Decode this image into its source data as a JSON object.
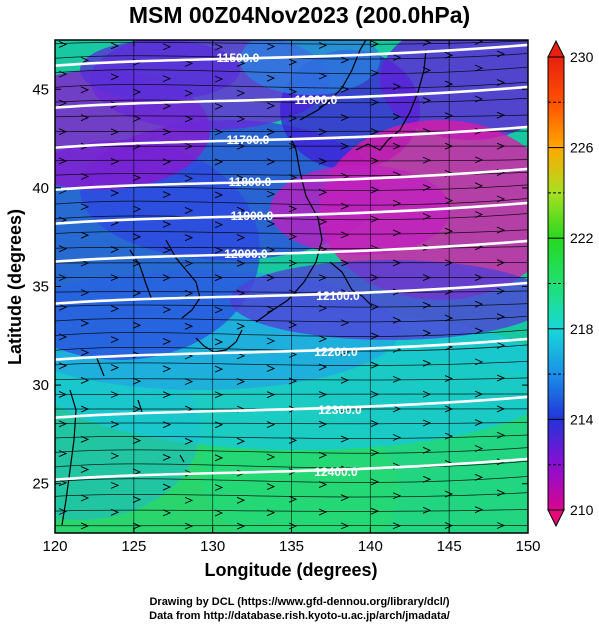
{
  "title": "MSM 00Z04Nov2023 (200.0hPa)",
  "x_axis": {
    "label": "Longitude (degrees)",
    "range": [
      120,
      150
    ],
    "ticks": [
      120,
      125,
      130,
      135,
      140,
      145,
      150
    ]
  },
  "y_axis": {
    "label": "Latitude (degrees)",
    "range": [
      22.5,
      47.5
    ],
    "ticks": [
      25,
      30,
      35,
      40,
      45
    ]
  },
  "colorbar": {
    "range": [
      210,
      230
    ],
    "tick_labels": [
      "230",
      "226",
      "222",
      "218",
      "214",
      "210"
    ],
    "colors": [
      "#d8048f",
      "#8a0fd2",
      "#2233d8",
      "#1a90e8",
      "#18d8d8",
      "#20e070",
      "#28d820",
      "#a8e020",
      "#ffa800",
      "#ff5000",
      "#e82010"
    ]
  },
  "contours": [
    {
      "label": "11500.0"
    },
    {
      "label": "11600.0"
    },
    {
      "label": "11700.0"
    },
    {
      "label": "11800.0"
    },
    {
      "label": "11900.0"
    },
    {
      "label": "12000.0"
    },
    {
      "label": "12100.0"
    },
    {
      "label": "12200.0"
    },
    {
      "label": "12300.0"
    },
    {
      "label": "12400.0"
    }
  ],
  "credits": [
    "Drawing by DCL (https://www.gfd-dennou.org/library/dcl/)",
    "Data from http://database.rish.kyoto-u.ac.jp/arch/jmadata/"
  ]
}
